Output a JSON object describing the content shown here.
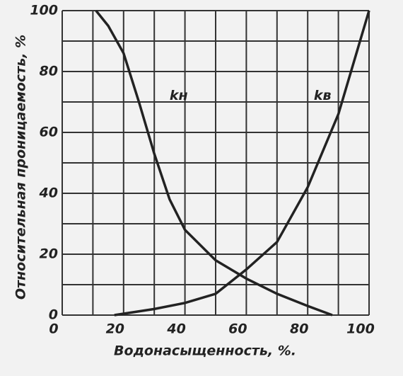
{
  "chart_data": {
    "type": "line",
    "xlabel": "Водонасыщенность, %.",
    "ylabel": "Относительная проницаемость, %",
    "xlim": [
      0,
      100
    ],
    "ylim": [
      0,
      100
    ],
    "xticks": [
      0,
      20,
      40,
      60,
      80,
      100
    ],
    "yticks": [
      0,
      20,
      40,
      60,
      80,
      100
    ],
    "minor_xticks": [
      10,
      30,
      50,
      70,
      90
    ],
    "minor_yticks": [
      10,
      30,
      50,
      70,
      90
    ],
    "grid": true,
    "series": [
      {
        "name": "kн",
        "color": "#222222",
        "x": [
          11,
          15,
          20,
          25,
          30,
          35,
          40,
          50,
          60,
          70,
          80,
          88
        ],
        "values": [
          100,
          95,
          86,
          70,
          53,
          38,
          28,
          18,
          12,
          7,
          3,
          0
        ]
      },
      {
        "name": "kв",
        "color": "#222222",
        "x": [
          17,
          30,
          40,
          50,
          60,
          70,
          80,
          90,
          100
        ],
        "values": [
          0,
          2,
          4,
          7,
          15,
          24,
          42,
          66,
          100
        ]
      }
    ]
  }
}
